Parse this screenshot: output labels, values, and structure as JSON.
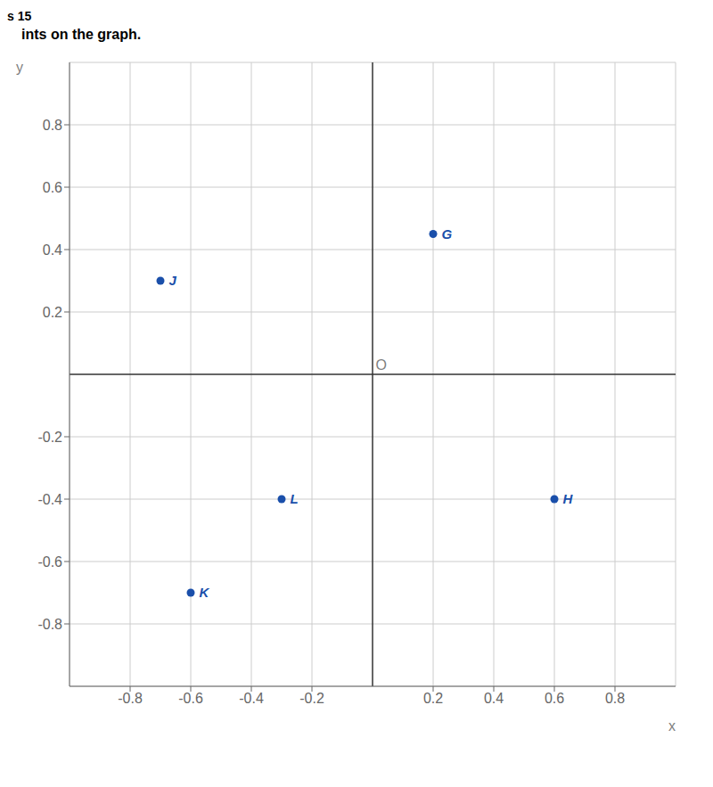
{
  "chart_data": {
    "type": "scatter",
    "annotations": [
      "s 15",
      "ints on the graph."
    ],
    "xlabel": "x",
    "ylabel": "y",
    "origin_label": "O",
    "x": [
      0.2,
      -0.7,
      0.6,
      -0.3,
      -0.6
    ],
    "values": [
      0.45,
      0.3,
      -0.4,
      -0.4,
      -0.7
    ],
    "labels": [
      "G",
      "J",
      "H",
      "L",
      "K"
    ],
    "color": "#1a4faa",
    "xlim": [
      -1.0,
      1.0
    ],
    "ylim": [
      -1.0,
      1.0
    ],
    "xticks": [
      -0.8,
      -0.6,
      -0.4,
      -0.2,
      0.2,
      0.4,
      0.6,
      0.8
    ],
    "yticks": [
      -0.8,
      -0.6,
      -0.4,
      -0.2,
      0.2,
      0.4,
      0.6,
      0.8
    ],
    "grid": true
  }
}
